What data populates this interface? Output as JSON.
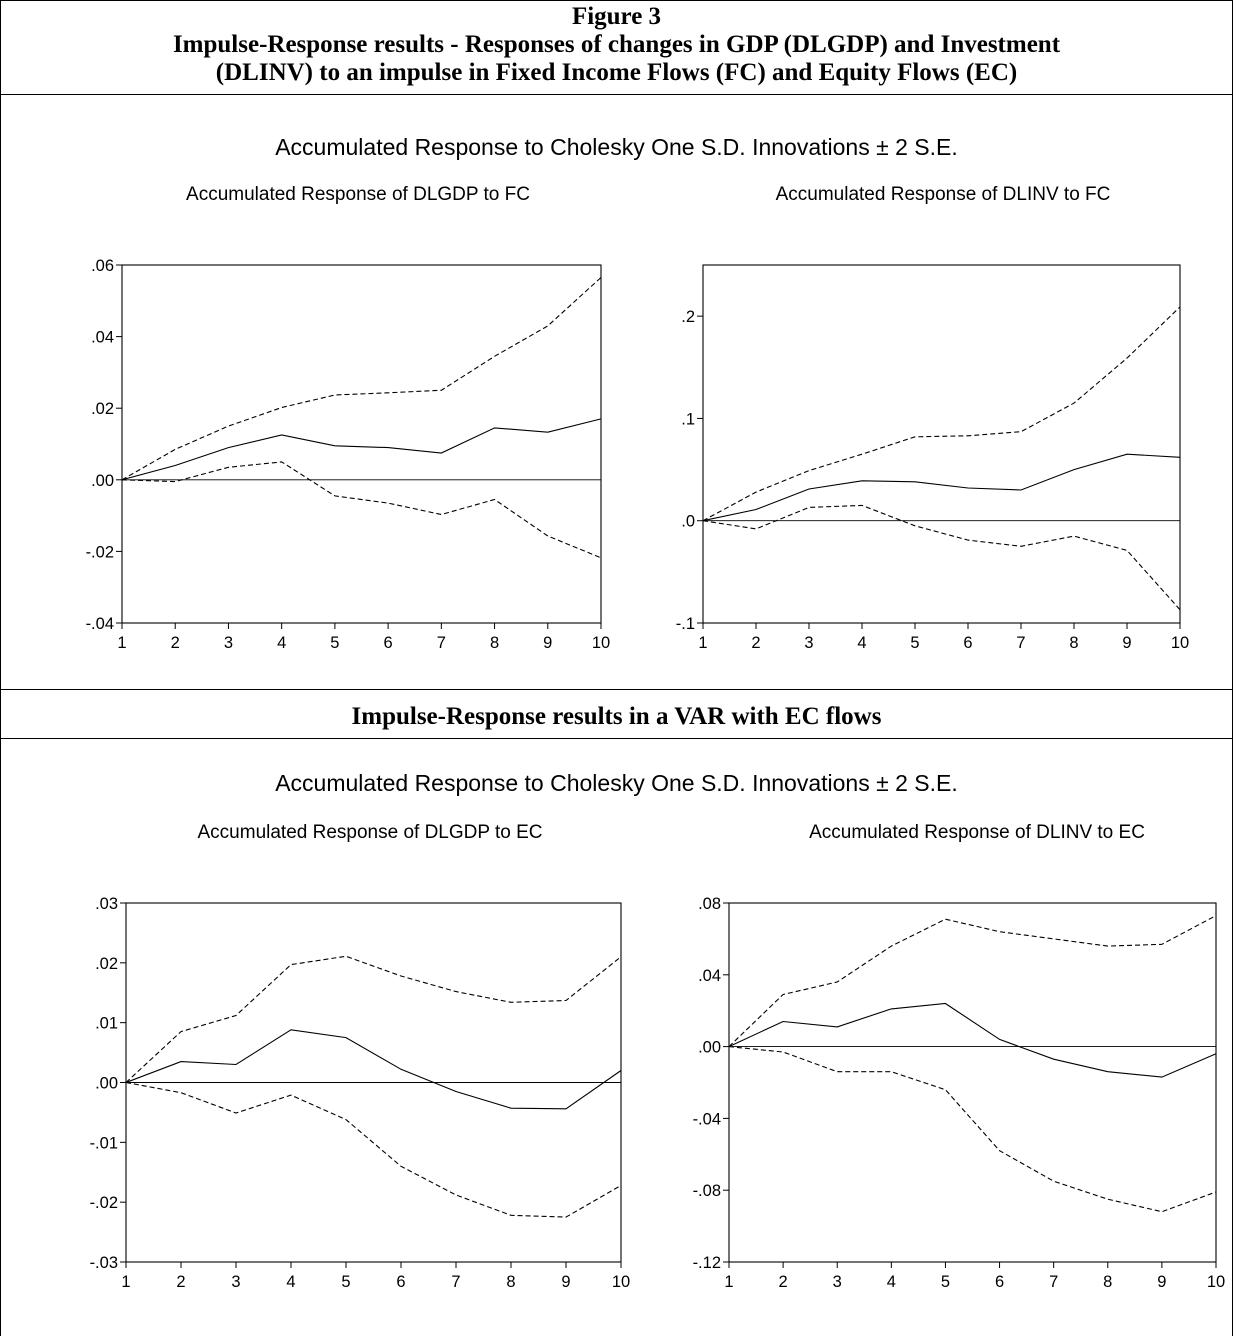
{
  "figure": {
    "label": "Figure 3",
    "title_line1": "Impulse-Response results - Responses of changes in GDP (DLGDP) and Investment",
    "title_line2": "(DLINV) to an impulse in Fixed Income Flows (FC) and Equity Flows (EC)",
    "section2_title": "Impulse-Response results in a VAR with EC flows",
    "panel_title_top": "Accumulated Response to Cholesky One S.D. Innovations ± 2 S.E.",
    "panel_title_bottom": "Accumulated Response to Cholesky One S.D. Innovations ± 2 S.E."
  },
  "chart_data": [
    {
      "type": "line",
      "title": "Accumulated Response of DLGDP to FC",
      "x": [
        1,
        2,
        3,
        4,
        5,
        6,
        7,
        8,
        9,
        10
      ],
      "ylim": [
        -0.04,
        0.06
      ],
      "yticks": [
        -0.04,
        -0.02,
        0.0,
        0.02,
        0.04,
        0.06
      ],
      "ytick_labels": [
        "-.04",
        "-.02",
        ".00",
        ".02",
        ".04",
        ".06"
      ],
      "series": [
        {
          "style": "solid",
          "values": [
            0.0,
            0.004,
            0.009,
            0.0125,
            0.0095,
            0.009,
            0.0075,
            0.0145,
            0.0133,
            0.017
          ]
        },
        {
          "style": "dashed",
          "values": [
            0.0,
            0.0085,
            0.015,
            0.0202,
            0.0237,
            0.0243,
            0.025,
            0.0345,
            0.043,
            0.0565
          ]
        },
        {
          "style": "dashed",
          "values": [
            0.0,
            -0.0005,
            0.0035,
            0.005,
            -0.0045,
            -0.0065,
            -0.0097,
            -0.0055,
            -0.0157,
            -0.0218
          ]
        }
      ]
    },
    {
      "type": "line",
      "title": "Accumulated Response of DLINV to FC",
      "x": [
        1,
        2,
        3,
        4,
        5,
        6,
        7,
        8,
        9,
        10
      ],
      "ylim": [
        -0.1,
        0.25
      ],
      "yticks": [
        -0.1,
        0.0,
        0.1,
        0.2
      ],
      "ytick_labels": [
        "-.1",
        ".0",
        ".1",
        ".2"
      ],
      "series": [
        {
          "style": "solid",
          "values": [
            0.0,
            0.011,
            0.031,
            0.039,
            0.038,
            0.032,
            0.03,
            0.05,
            0.065,
            0.062
          ]
        },
        {
          "style": "dashed",
          "values": [
            0.0,
            0.028,
            0.049,
            0.065,
            0.082,
            0.083,
            0.087,
            0.115,
            0.159,
            0.209
          ]
        },
        {
          "style": "dashed",
          "values": [
            0.0,
            -0.008,
            0.013,
            0.015,
            -0.005,
            -0.019,
            -0.025,
            -0.015,
            -0.029,
            -0.087
          ]
        }
      ]
    },
    {
      "type": "line",
      "title": "Accumulated Response of DLGDP to EC",
      "x": [
        1,
        2,
        3,
        4,
        5,
        6,
        7,
        8,
        9,
        10
      ],
      "ylim": [
        -0.03,
        0.03
      ],
      "yticks": [
        -0.03,
        -0.02,
        -0.01,
        0.0,
        0.01,
        0.02,
        0.03
      ],
      "ytick_labels": [
        "-.03",
        "-.02",
        "-.01",
        ".00",
        ".01",
        ".02",
        ".03"
      ],
      "series": [
        {
          "style": "solid",
          "values": [
            0.0,
            0.0035,
            0.003,
            0.0088,
            0.0075,
            0.0022,
            -0.0015,
            -0.0043,
            -0.0044,
            0.002
          ]
        },
        {
          "style": "dashed",
          "values": [
            0.0,
            0.0085,
            0.0112,
            0.0197,
            0.0211,
            0.0178,
            0.0152,
            0.0134,
            0.0137,
            0.021
          ]
        },
        {
          "style": "dashed",
          "values": [
            0.0,
            -0.0017,
            -0.0051,
            -0.0021,
            -0.0062,
            -0.014,
            -0.0188,
            -0.0222,
            -0.0225,
            -0.0172
          ]
        }
      ]
    },
    {
      "type": "line",
      "title": "Accumulated Response of DLINV to EC",
      "x": [
        1,
        2,
        3,
        4,
        5,
        6,
        7,
        8,
        9,
        10
      ],
      "ylim": [
        -0.12,
        0.08
      ],
      "yticks": [
        -0.12,
        -0.08,
        -0.04,
        0.0,
        0.04,
        0.08
      ],
      "ytick_labels": [
        "-.12",
        "-.08",
        "-.04",
        ".00",
        ".04",
        ".08"
      ],
      "series": [
        {
          "style": "solid",
          "values": [
            0.0,
            0.014,
            0.011,
            0.021,
            0.024,
            0.004,
            -0.007,
            -0.014,
            -0.017,
            -0.004
          ]
        },
        {
          "style": "dashed",
          "values": [
            0.0,
            0.029,
            0.036,
            0.056,
            0.071,
            0.064,
            0.06,
            0.056,
            0.057,
            0.073
          ]
        },
        {
          "style": "dashed",
          "values": [
            0.0,
            -0.003,
            -0.014,
            -0.014,
            -0.024,
            -0.058,
            -0.075,
            -0.085,
            -0.092,
            -0.081
          ]
        }
      ]
    }
  ]
}
